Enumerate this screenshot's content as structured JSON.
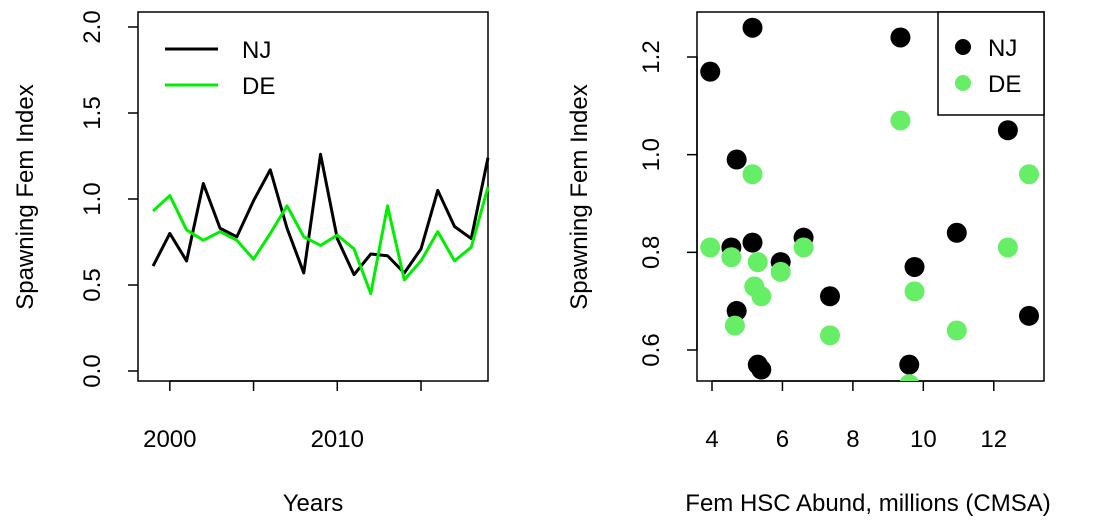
{
  "chart_data": [
    {
      "type": "line",
      "xlabel": "Years",
      "ylabel": "Spawning Fem Index",
      "xlim": [
        1998,
        2019
      ],
      "ylim": [
        0,
        2
      ],
      "xticks": [
        2000,
        2010
      ],
      "yticks": [
        0.0,
        0.5,
        1.0,
        1.5,
        2.0
      ],
      "ytick_labels": [
        "0.0",
        "0.5",
        "1.0",
        "1.5",
        "2.0"
      ],
      "legend_position": "top-left",
      "x": [
        1999,
        2000,
        2001,
        2002,
        2003,
        2004,
        2005,
        2006,
        2007,
        2008,
        2009,
        2010,
        2011,
        2012,
        2013,
        2014,
        2015,
        2016,
        2017,
        2018,
        2019
      ],
      "series": [
        {
          "name": "NJ",
          "color": "#000000",
          "values": [
            0.61,
            0.8,
            0.64,
            1.09,
            0.83,
            0.78,
            0.99,
            1.17,
            0.83,
            0.57,
            1.26,
            0.77,
            0.56,
            0.68,
            0.67,
            0.57,
            0.71,
            1.05,
            0.84,
            0.77,
            1.24
          ]
        },
        {
          "name": "DE",
          "color": "#00ee00",
          "values": [
            0.93,
            1.02,
            0.82,
            0.76,
            0.81,
            0.76,
            0.65,
            0.8,
            0.96,
            0.78,
            0.73,
            0.79,
            0.71,
            0.45,
            0.96,
            0.53,
            0.64,
            0.81,
            0.64,
            0.72,
            1.07
          ]
        }
      ]
    },
    {
      "type": "scatter",
      "xlabel": "Fem HSC Abund, millions (CMSA)",
      "ylabel": "Spawning Fem Index",
      "xlim": [
        3.7,
        13.4
      ],
      "ylim": [
        0.53,
        1.29
      ],
      "xticks": [
        4,
        6,
        8,
        10,
        12
      ],
      "yticks": [
        0.6,
        0.8,
        1.0,
        1.2
      ],
      "ytick_labels": [
        "0.6",
        "0.8",
        "1.0",
        "1.2"
      ],
      "legend_position": "top-right",
      "series": [
        {
          "name": "NJ",
          "color": "#000000",
          "points": [
            [
              3.95,
              1.17
            ],
            [
              4.55,
              0.81
            ],
            [
              4.7,
              0.99
            ],
            [
              4.7,
              0.68
            ],
            [
              5.15,
              0.82
            ],
            [
              5.15,
              1.26
            ],
            [
              5.3,
              0.57
            ],
            [
              5.4,
              0.56
            ],
            [
              5.95,
              0.78
            ],
            [
              6.6,
              0.83
            ],
            [
              7.35,
              0.71
            ],
            [
              9.35,
              1.24
            ],
            [
              9.6,
              0.57
            ],
            [
              9.75,
              0.77
            ],
            [
              10.95,
              0.84
            ],
            [
              12.4,
              1.05
            ],
            [
              13.0,
              0.67
            ]
          ]
        },
        {
          "name": "DE",
          "color": "#66ee66",
          "points": [
            [
              3.95,
              0.81
            ],
            [
              4.55,
              0.79
            ],
            [
              4.65,
              0.65
            ],
            [
              5.15,
              0.96
            ],
            [
              5.2,
              0.73
            ],
            [
              5.3,
              0.78
            ],
            [
              5.4,
              0.71
            ],
            [
              5.95,
              0.76
            ],
            [
              6.6,
              0.81
            ],
            [
              7.35,
              0.63
            ],
            [
              9.35,
              1.07
            ],
            [
              9.6,
              0.53
            ],
            [
              9.75,
              0.72
            ],
            [
              10.95,
              0.64
            ],
            [
              12.4,
              0.81
            ],
            [
              13.0,
              0.96
            ]
          ]
        }
      ]
    }
  ]
}
